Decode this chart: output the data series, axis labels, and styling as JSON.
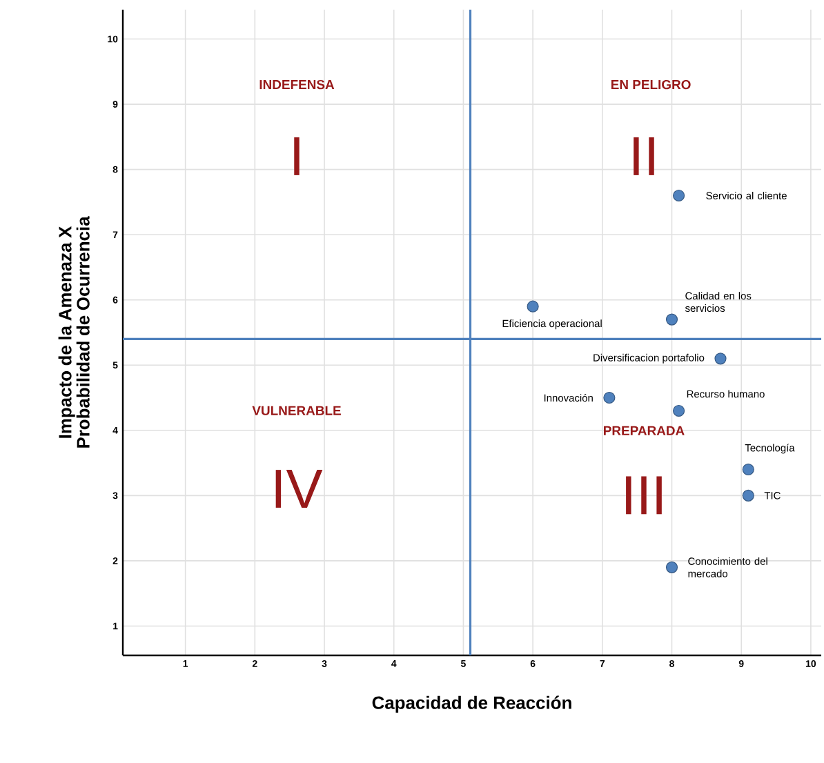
{
  "chart_data": {
    "type": "scatter",
    "xlabel": "Capacidad de Reacción",
    "ylabel": "Impacto de la Amenaza X Probabilidad de Ocurrencia",
    "xlim": [
      0.1,
      10.15
    ],
    "ylim": [
      0.55,
      10.45
    ],
    "xticks": [
      1,
      2,
      3,
      4,
      5,
      6,
      7,
      8,
      9,
      10
    ],
    "yticks": [
      1,
      2,
      3,
      4,
      5,
      6,
      7,
      8,
      9,
      10
    ],
    "grid": true,
    "marker": "circle",
    "series": [
      {
        "name": "Servicio al cliente",
        "color": "#4f81bd",
        "x": [
          8.1
        ],
        "values": [
          7.6
        ]
      },
      {
        "name": "Eficiencia operacional",
        "color": "#4f81bd",
        "x": [
          6.0
        ],
        "values": [
          5.9
        ]
      },
      {
        "name": "Calidad en los servicios",
        "color": "#4f81bd",
        "x": [
          8.0
        ],
        "values": [
          5.7
        ]
      },
      {
        "name": "Diversificacion portafolio",
        "color": "#4f81bd",
        "x": [
          8.7
        ],
        "values": [
          5.1
        ]
      },
      {
        "name": "Innovación",
        "color": "#4f81bd",
        "x": [
          7.1
        ],
        "values": [
          4.5
        ]
      },
      {
        "name": "Recurso humano",
        "color": "#4f81bd",
        "x": [
          8.1
        ],
        "values": [
          4.3
        ]
      },
      {
        "name": "Tecnología",
        "color": "#4f81bd",
        "x": [
          9.1
        ],
        "values": [
          3.4
        ]
      },
      {
        "name": "TIC",
        "color": "#4f81bd",
        "x": [
          9.1
        ],
        "values": [
          3.0
        ]
      },
      {
        "name": "Conocimiento del mercado",
        "color": "#4f81bd",
        "x": [
          8.0
        ],
        "values": [
          1.9
        ]
      }
    ],
    "ref_lines": [
      {
        "axis": "x",
        "value": 5.1,
        "color": "#4f81bd"
      },
      {
        "axis": "y",
        "value": 5.4,
        "color": "#4f81bd"
      }
    ],
    "annotations": [
      "INDEFENSA",
      "EN PELIGRO",
      "VULNERABLE",
      "PREPARADA",
      "I",
      "II",
      "IV",
      "III"
    ]
  }
}
